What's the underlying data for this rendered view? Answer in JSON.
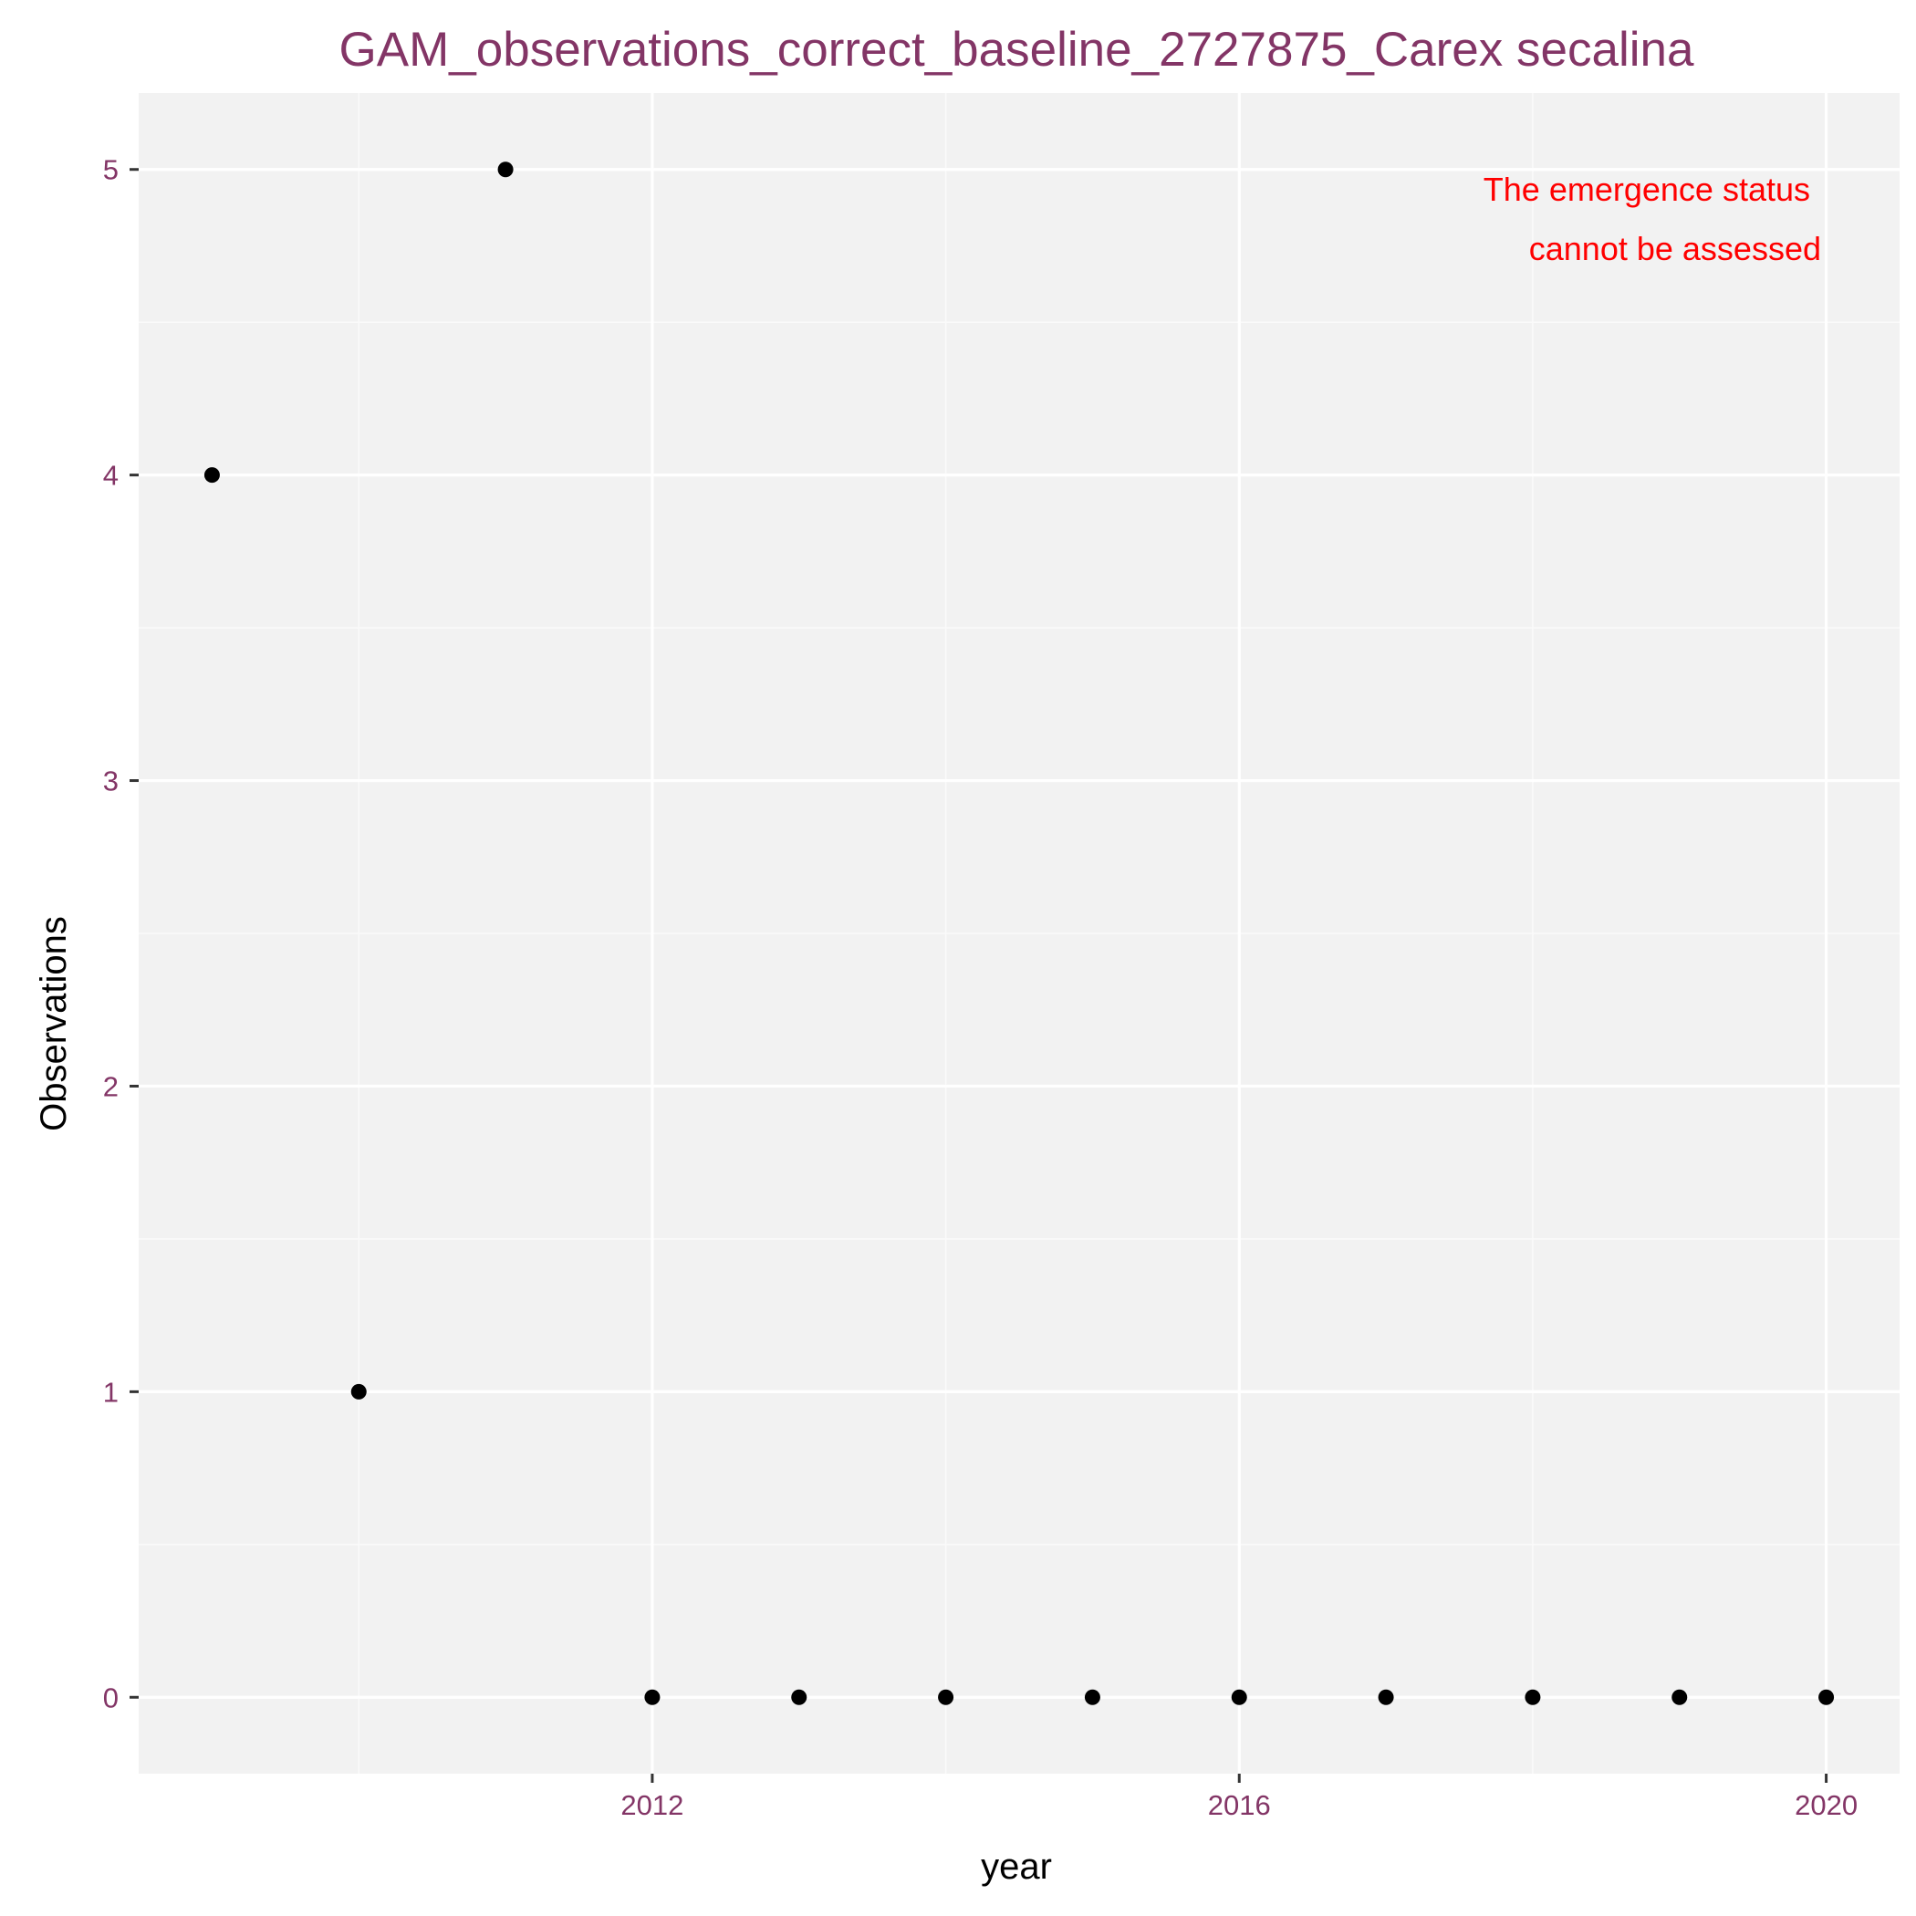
{
  "colors": {
    "panel_background": "#F2F2F2",
    "grid_major": "#FFFFFF",
    "grid_minor": "#FAFAFA",
    "title_text": "#833566",
    "tick_text": "#833566",
    "tick_mark": "#333333",
    "point": "#000000",
    "annotation_text": "#FF0000"
  },
  "chart_data": {
    "type": "scatter",
    "title": "GAM_observations_correct_baseline_2727875_Carex secalina",
    "xlabel": "year",
    "ylabel": "Observations",
    "xlim": [
      2008.5,
      2020.5
    ],
    "ylim": [
      -0.25,
      5.25
    ],
    "x_major_ticks": [
      2012,
      2016,
      2020
    ],
    "x_minor_ticks": [
      2010,
      2014,
      2018
    ],
    "y_major_ticks": [
      0,
      1,
      2,
      3,
      4,
      5
    ],
    "y_minor_ticks": [
      0.5,
      1.5,
      2.5,
      3.5,
      4.5
    ],
    "grid": true,
    "legend": "none",
    "series": [
      {
        "x": [
          2009,
          2010,
          2011,
          2012,
          2013,
          2014,
          2015,
          2016,
          2017,
          2018,
          2019,
          2020
        ],
        "y": [
          4,
          1,
          5,
          0,
          0,
          0,
          0,
          0,
          0,
          0,
          0,
          0
        ]
      }
    ],
    "annotation": {
      "lines": [
        "The emergence status",
        "cannot be assessed"
      ],
      "placement": "top-right"
    }
  }
}
